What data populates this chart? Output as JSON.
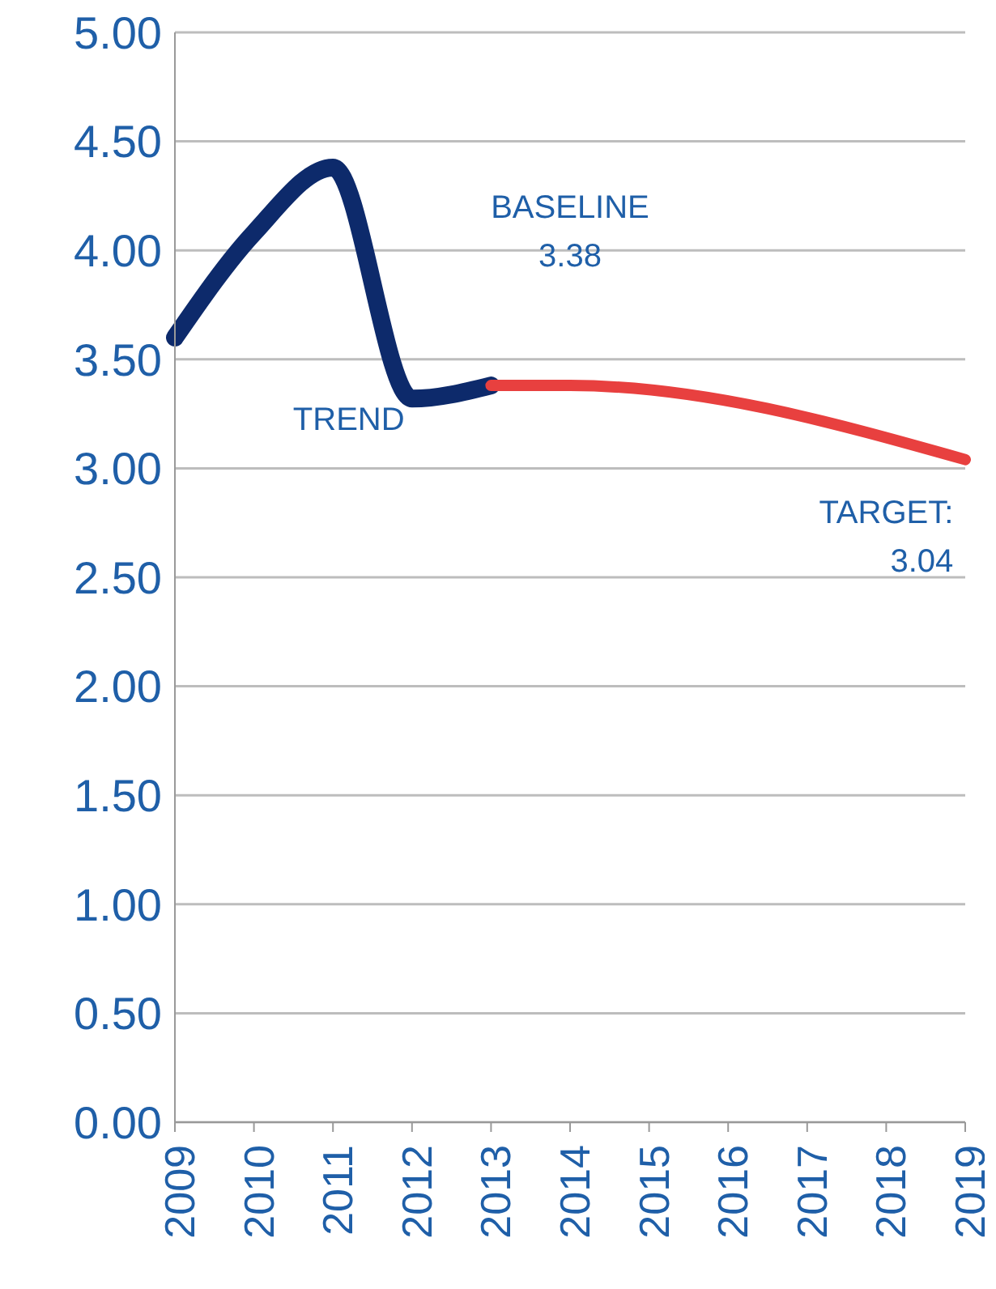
{
  "chart_data": {
    "type": "line",
    "categories": [
      "2009",
      "2010",
      "2011",
      "2012",
      "2013",
      "2014",
      "2015",
      "2016",
      "2017",
      "2018",
      "2019"
    ],
    "series": [
      {
        "color": "#0d2a6b",
        "values": [
          3.6,
          4.08,
          4.38,
          3.32,
          3.38,
          null,
          null,
          null,
          null,
          null,
          null
        ]
      },
      {
        "color": "#e8403f",
        "values": [
          null,
          null,
          null,
          null,
          3.38,
          3.38,
          null,
          null,
          null,
          null,
          3.04
        ]
      }
    ],
    "ylim": [
      0,
      5
    ],
    "yticks": [
      {
        "value": 0,
        "label": "0.00"
      },
      {
        "value": 0.5,
        "label": "0.50"
      },
      {
        "value": 1,
        "label": "1.00"
      },
      {
        "value": 1.5,
        "label": "1.50"
      },
      {
        "value": 2,
        "label": "2.00"
      },
      {
        "value": 2.5,
        "label": "2.50"
      },
      {
        "value": 3,
        "label": "3.00"
      },
      {
        "value": 3.5,
        "label": "3.50"
      },
      {
        "value": 4,
        "label": "4.00"
      },
      {
        "value": 4.5,
        "label": "4.50"
      },
      {
        "value": 5,
        "label": "5.00"
      }
    ],
    "grid": "y",
    "marker": "none",
    "annotations": [
      "TREND",
      "BASELINE 3.38",
      "TARGET: 3.04"
    ]
  }
}
